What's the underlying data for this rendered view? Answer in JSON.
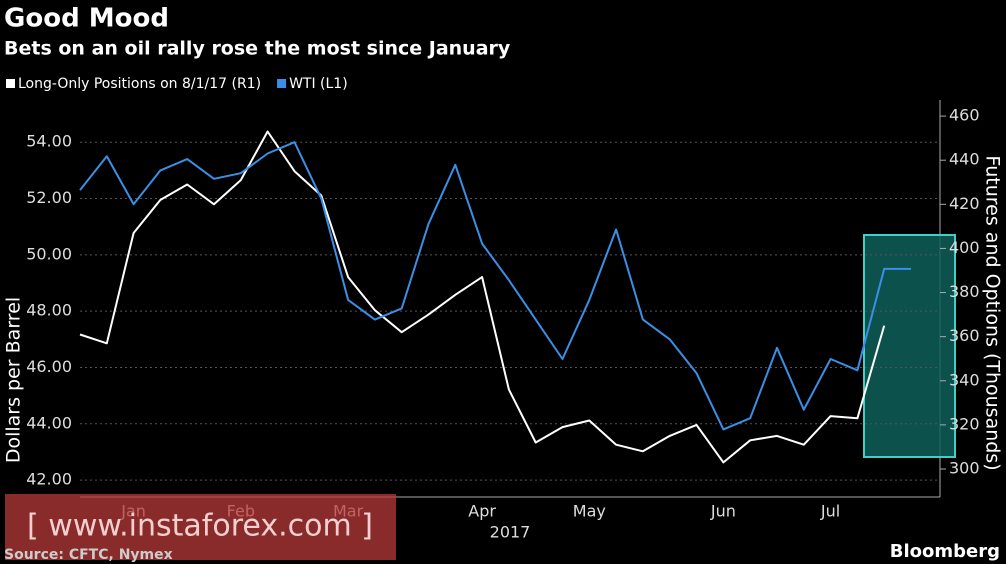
{
  "chart_data": {
    "type": "line",
    "title": "Good Mood",
    "subtitle": "Bets on an oil rally rose the most since January",
    "y_label": "Dollars per Barrel",
    "y2_label": "Futures and Options (Thousands)",
    "x_year_label": "2017",
    "source": "Source: CFTC, Nymex",
    "brand": "Bloomberg",
    "watermark": "[ www.instaforex.com ]",
    "grid": true,
    "categories": [
      null,
      null,
      "Jan",
      null,
      null,
      null,
      "Feb",
      null,
      null,
      null,
      "Mar",
      null,
      null,
      null,
      null,
      "Apr",
      null,
      null,
      null,
      "May",
      null,
      null,
      null,
      null,
      "Jun",
      null,
      null,
      null,
      "Jul",
      null,
      null,
      null
    ],
    "series": [
      {
        "name": "Long-Only Positions on 8/1/17 (R1)",
        "color": "#ffffff",
        "axis": "y2",
        "values": [
          361,
          357,
          407,
          422,
          429,
          420,
          431,
          453,
          435,
          424,
          387,
          372,
          362,
          370,
          379,
          387,
          336,
          312,
          319,
          322,
          311,
          308,
          315,
          320,
          303,
          313,
          315,
          311,
          324,
          323,
          365,
          null
        ]
      },
      {
        "name": "WTI (L1)",
        "color": "#3a8fe6",
        "axis": "y",
        "values": [
          52.3,
          53.5,
          51.8,
          53.0,
          53.4,
          52.7,
          52.9,
          53.6,
          54.0,
          52.0,
          48.4,
          47.7,
          48.1,
          51.1,
          53.2,
          50.4,
          49.1,
          47.7,
          46.3,
          48.4,
          50.9,
          47.7,
          47.0,
          45.8,
          43.8,
          44.2,
          46.7,
          44.5,
          46.3,
          45.9,
          49.5,
          49.5
        ]
      }
    ],
    "ylim": [
      41.4,
      55.5
    ],
    "yticks": [
      {
        "value": 42,
        "label": "42.00"
      },
      {
        "value": 44,
        "label": "44.00"
      },
      {
        "value": 46,
        "label": "46.00"
      },
      {
        "value": 48,
        "label": "48.00"
      },
      {
        "value": 50,
        "label": "50.00"
      },
      {
        "value": 52,
        "label": "52.00"
      },
      {
        "value": 54,
        "label": "54.00"
      }
    ],
    "y2lim": [
      287.3,
      467.3
    ],
    "y2ticks": [
      300,
      320,
      340,
      360,
      380,
      400,
      420,
      440,
      460
    ]
  }
}
